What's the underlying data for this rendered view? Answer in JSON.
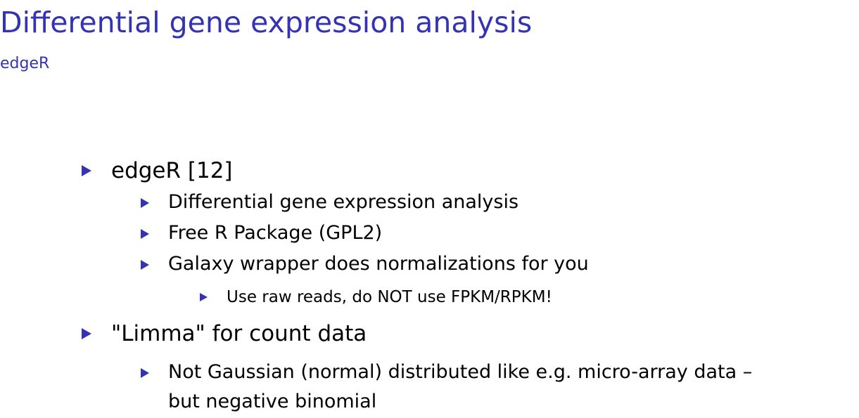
{
  "slide": {
    "title": "Differential gene expression analysis",
    "subtitle": "edgeR"
  },
  "items": {
    "edger": "edgeR [12]",
    "dge": "Differential gene expression analysis",
    "free_r": "Free R Package (GPL2)",
    "galaxy": "Galaxy wrapper does normalizations for you",
    "raw_reads": "Use raw reads, do NOT use FPKM/RPKM!",
    "limma": "\"Limma\" for count data",
    "not_gaussian_line1": "Not Gaussian (normal) distributed like e.g. micro-array data –",
    "not_gaussian_line2": "but negative binomial"
  },
  "colors": {
    "accent": "#3333b3",
    "text": "#000000",
    "background": "#ffffff"
  }
}
